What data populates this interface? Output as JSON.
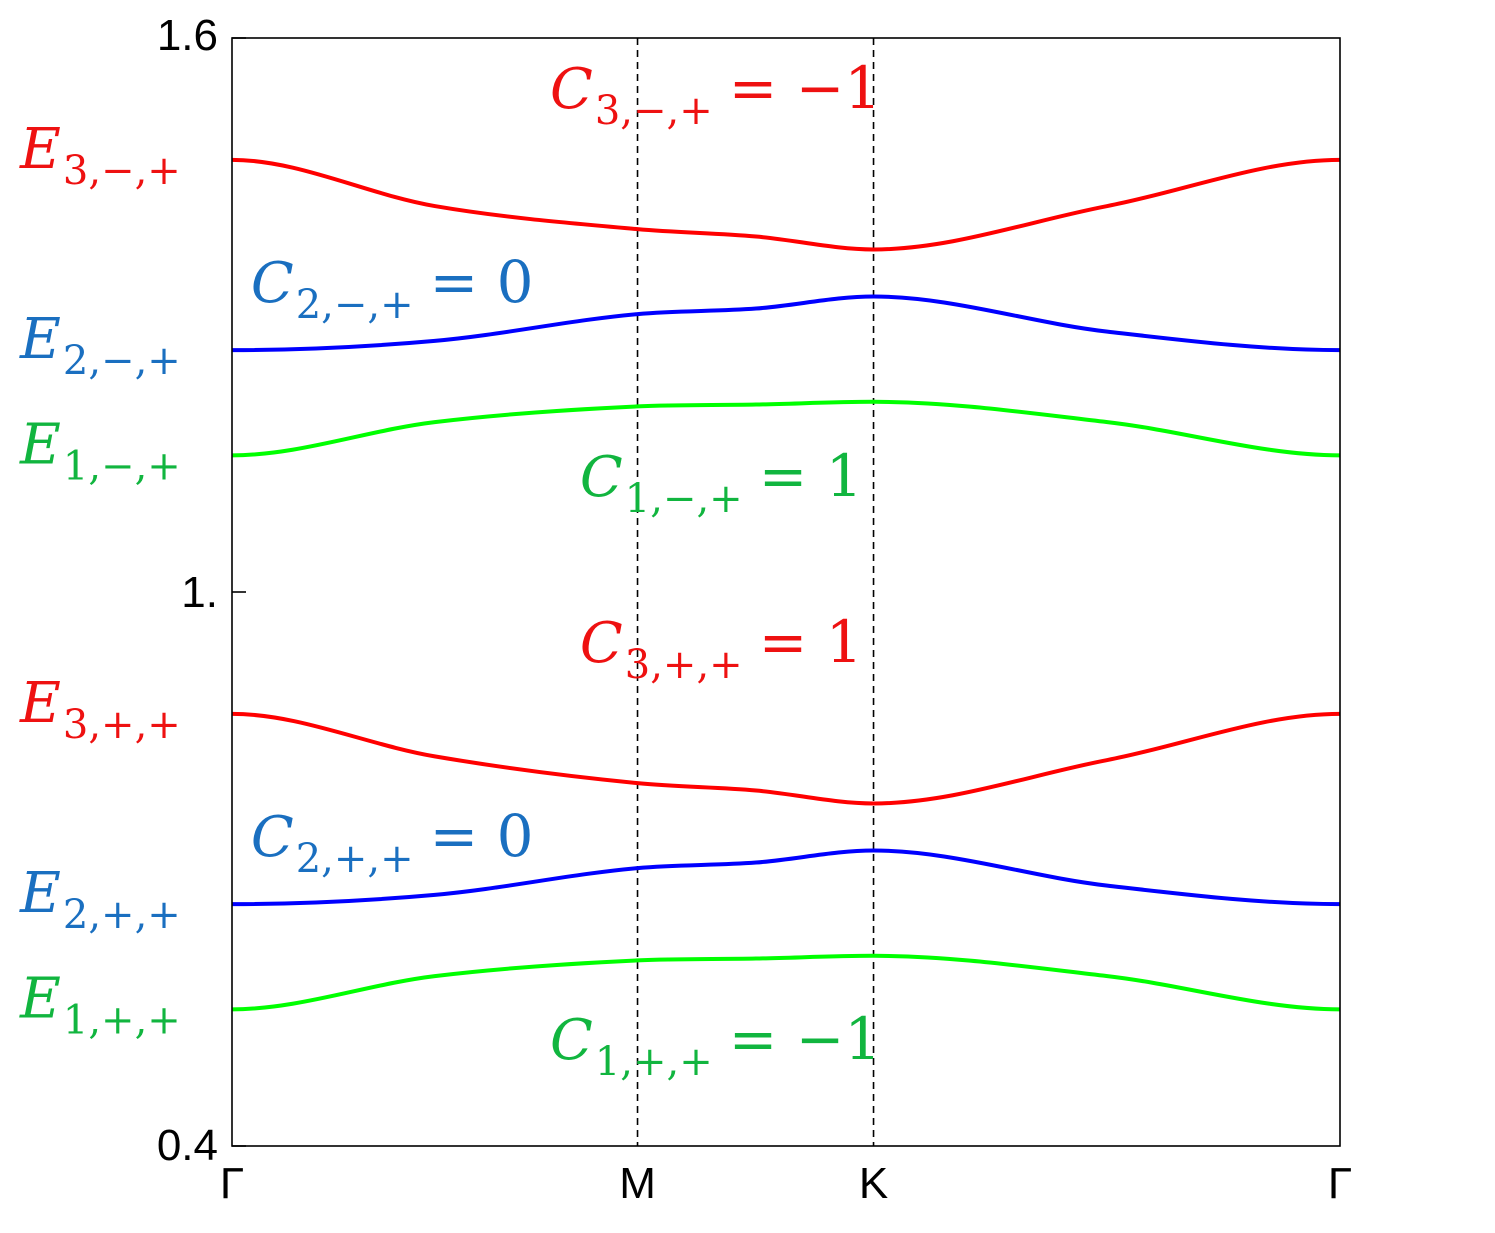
{
  "chart_data": {
    "type": "line",
    "title": "",
    "xlabel": "",
    "ylabel": "",
    "ylim": [
      0.4,
      1.6
    ],
    "yticks": [
      {
        "value": 1.6,
        "label": "1.6"
      },
      {
        "value": 1.0,
        "label": "1."
      },
      {
        "value": 0.4,
        "label": "0.4"
      }
    ],
    "xticks": [
      {
        "value": 0,
        "label": "Γ"
      },
      {
        "value": 0.366,
        "label": "M"
      },
      {
        "value": 0.579,
        "label": "K"
      },
      {
        "value": 1,
        "label": "Γ"
      }
    ],
    "vlines": [
      0.366,
      0.579
    ],
    "x": [
      0,
      0.183,
      0.366,
      0.473,
      0.579,
      0.79,
      1
    ],
    "series": [
      {
        "band": "3-",
        "color": "#ff0000",
        "values": [
          1.468,
          1.418,
          1.393,
          1.385,
          1.371,
          1.418,
          1.468
        ]
      },
      {
        "band": "2-",
        "color": "#0000ff",
        "values": [
          1.262,
          1.272,
          1.301,
          1.307,
          1.32,
          1.282,
          1.262
        ]
      },
      {
        "band": "1-",
        "color": "#00ff00",
        "values": [
          1.148,
          1.184,
          1.201,
          1.203,
          1.206,
          1.184,
          1.148
        ]
      },
      {
        "band": "3+",
        "color": "#ff0000",
        "values": [
          0.868,
          0.822,
          0.793,
          0.785,
          0.771,
          0.818,
          0.868
        ]
      },
      {
        "band": "2+",
        "color": "#0000ff",
        "values": [
          0.662,
          0.672,
          0.701,
          0.707,
          0.72,
          0.682,
          0.662
        ]
      },
      {
        "band": "1+",
        "color": "#00ff00",
        "values": [
          0.548,
          0.584,
          0.601,
          0.603,
          0.606,
          0.584,
          0.548
        ]
      }
    ],
    "annotations": {
      "energy_labels": [
        {
          "main": "E",
          "sub": "3,−,+",
          "color": "#ee1111",
          "y": 1.468
        },
        {
          "main": "E",
          "sub": "2,−,+",
          "color": "#1a6fc0",
          "y": 1.262
        },
        {
          "main": "E",
          "sub": "1,−,+",
          "color": "#11b53f",
          "y": 1.148
        },
        {
          "main": "E",
          "sub": "3,+,+",
          "color": "#ee1111",
          "y": 0.868
        },
        {
          "main": "E",
          "sub": "2,+,+",
          "color": "#1a6fc0",
          "y": 0.662
        },
        {
          "main": "E",
          "sub": "1,+,+",
          "color": "#11b53f",
          "y": 0.548
        }
      ],
      "chern_labels": [
        {
          "main": "C",
          "sub": "3,−,+",
          "value": "= −1",
          "color": "#ee1111",
          "x": 0.287,
          "y": 1.535
        },
        {
          "main": "C",
          "sub": "2,−,+",
          "value": "= 0",
          "color": "#1a6fc0",
          "x": 0.017,
          "y": 1.325
        },
        {
          "main": "C",
          "sub": "1,−,+",
          "value": "= 1",
          "color": "#11b53f",
          "x": 0.314,
          "y": 1.115
        },
        {
          "main": "C",
          "sub": "3,+,+",
          "value": "= 1",
          "color": "#ee1111",
          "x": 0.314,
          "y": 0.935
        },
        {
          "main": "C",
          "sub": "2,+,+",
          "value": "= 0",
          "color": "#1a6fc0",
          "x": 0.017,
          "y": 0.725
        },
        {
          "main": "C",
          "sub": "1,+,+",
          "value": "= −1",
          "color": "#11b53f",
          "x": 0.287,
          "y": 0.505
        }
      ]
    },
    "grid": false,
    "legend": "none"
  }
}
